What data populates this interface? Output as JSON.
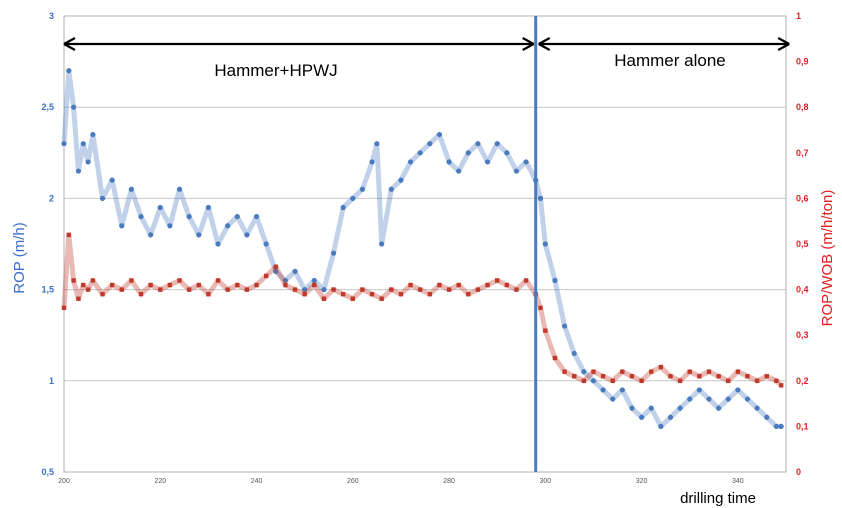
{
  "chart_data": {
    "type": "scatter",
    "xlabel": "drilling time",
    "ylabel_left": "ROP (m/h)",
    "ylabel_right": "ROP/WOB (m/h/ton)",
    "xlim": [
      200,
      350
    ],
    "ylim_left": [
      0.5,
      3
    ],
    "ylim_right": [
      0,
      1
    ],
    "x_ticks": [
      "200",
      "220",
      "240",
      "260",
      "280",
      "300",
      "320",
      "340"
    ],
    "y_ticks_left": [
      "0,5",
      "1",
      "1,5",
      "2",
      "2,5",
      "3"
    ],
    "y_ticks_right": [
      "0",
      "0,1",
      "0,2",
      "0,3",
      "0,4",
      "0,5",
      "0,6",
      "0,7",
      "0,8",
      "0,9",
      "1"
    ],
    "grid": true,
    "colors": {
      "rop": "#4a7bbf",
      "rop_wob": "#c0392b",
      "right_axis": "#e02020",
      "left_axis": "#3b6ec9",
      "divider": "#4a7bbf"
    },
    "vline_x": 298,
    "annotations": [
      {
        "text": "Hammer+HPWJ",
        "from_x": 200,
        "to_x": 298
      },
      {
        "text": "Hammer alone",
        "from_x": 298,
        "to_x": 349
      }
    ],
    "series": [
      {
        "axis": "left",
        "x": [
          200,
          201,
          202,
          203,
          204,
          205,
          206,
          208,
          210,
          212,
          214,
          216,
          218,
          220,
          222,
          224,
          226,
          228,
          230,
          232,
          234,
          236,
          238,
          240,
          242,
          244,
          246,
          248,
          250,
          252,
          254,
          256,
          258,
          260,
          262,
          264,
          265,
          266,
          268,
          270,
          272,
          274,
          276,
          278,
          280,
          282,
          284,
          286,
          288,
          290,
          292,
          294,
          296,
          298,
          299,
          300,
          302,
          304,
          306,
          308,
          310,
          312,
          314,
          316,
          318,
          320,
          322,
          324,
          326,
          328,
          330,
          332,
          334,
          336,
          338,
          340,
          342,
          344,
          346,
          348,
          349
        ],
        "y": [
          2.3,
          2.7,
          2.5,
          2.15,
          2.3,
          2.2,
          2.35,
          2.0,
          2.1,
          1.85,
          2.05,
          1.9,
          1.8,
          1.95,
          1.85,
          2.05,
          1.9,
          1.8,
          1.95,
          1.75,
          1.85,
          1.9,
          1.8,
          1.9,
          1.75,
          1.6,
          1.55,
          1.6,
          1.5,
          1.55,
          1.5,
          1.7,
          1.95,
          2.0,
          2.05,
          2.2,
          2.3,
          1.75,
          2.05,
          2.1,
          2.2,
          2.25,
          2.3,
          2.35,
          2.2,
          2.15,
          2.25,
          2.3,
          2.2,
          2.3,
          2.25,
          2.15,
          2.2,
          2.1,
          2.0,
          1.75,
          1.55,
          1.3,
          1.15,
          1.05,
          1.0,
          0.95,
          0.9,
          0.95,
          0.85,
          0.8,
          0.85,
          0.75,
          0.8,
          0.85,
          0.9,
          0.95,
          0.9,
          0.85,
          0.9,
          0.95,
          0.9,
          0.85,
          0.8,
          0.75,
          0.75
        ]
      },
      {
        "axis": "right",
        "x": [
          200,
          201,
          202,
          203,
          204,
          205,
          206,
          208,
          210,
          212,
          214,
          216,
          218,
          220,
          222,
          224,
          226,
          228,
          230,
          232,
          234,
          236,
          238,
          240,
          242,
          244,
          246,
          248,
          250,
          252,
          254,
          256,
          258,
          260,
          262,
          264,
          266,
          268,
          270,
          272,
          274,
          276,
          278,
          280,
          282,
          284,
          286,
          288,
          290,
          292,
          294,
          296,
          298,
          299,
          300,
          302,
          304,
          306,
          308,
          310,
          312,
          314,
          316,
          318,
          320,
          322,
          324,
          326,
          328,
          330,
          332,
          334,
          336,
          338,
          340,
          342,
          344,
          346,
          348,
          349
        ],
        "y": [
          0.36,
          0.52,
          0.42,
          0.38,
          0.41,
          0.4,
          0.42,
          0.39,
          0.41,
          0.4,
          0.42,
          0.39,
          0.41,
          0.4,
          0.41,
          0.42,
          0.4,
          0.41,
          0.39,
          0.42,
          0.4,
          0.41,
          0.4,
          0.41,
          0.43,
          0.45,
          0.41,
          0.4,
          0.39,
          0.41,
          0.38,
          0.4,
          0.39,
          0.38,
          0.4,
          0.39,
          0.38,
          0.4,
          0.39,
          0.41,
          0.4,
          0.39,
          0.41,
          0.4,
          0.41,
          0.39,
          0.4,
          0.41,
          0.42,
          0.41,
          0.4,
          0.42,
          0.39,
          0.36,
          0.31,
          0.25,
          0.22,
          0.21,
          0.2,
          0.22,
          0.21,
          0.2,
          0.22,
          0.21,
          0.2,
          0.22,
          0.23,
          0.21,
          0.2,
          0.22,
          0.21,
          0.22,
          0.21,
          0.2,
          0.22,
          0.21,
          0.2,
          0.21,
          0.2,
          0.19
        ]
      }
    ]
  }
}
